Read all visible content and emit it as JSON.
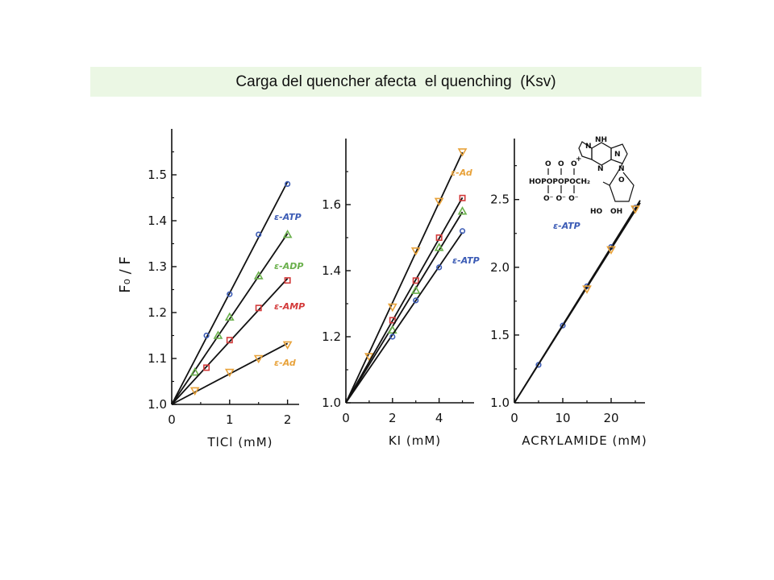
{
  "slide": {
    "title": "Carga del quencher afecta  el quenching  (Ksv)"
  },
  "colors": {
    "eATP": "#3b5bb5",
    "eADP": "#6ab04c",
    "eAMP": "#d33a3a",
    "eAd": "#e8a23a",
    "axis": "#111111"
  },
  "chart_data": [
    {
      "type": "scatter",
      "xlabel": "TlCl (mM)",
      "ylabel": "F₀ / F",
      "xlim": [
        0,
        2.2
      ],
      "ylim": [
        1.0,
        1.6
      ],
      "xticks": [
        0,
        1,
        2
      ],
      "xtick_labels": [
        "0",
        "1",
        "2"
      ],
      "yticks": [
        1.0,
        1.1,
        1.2,
        1.3,
        1.4,
        1.5
      ],
      "ytick_labels": [
        "1.0",
        "1.1",
        "1.2",
        "1.3",
        "1.4",
        "1.5"
      ],
      "series": [
        {
          "name": "ε-ATP",
          "marker": "circle",
          "x": [
            0.6,
            1.0,
            1.5,
            2.0
          ],
          "y": [
            1.15,
            1.24,
            1.37,
            1.48
          ]
        },
        {
          "name": "ε-ADP",
          "marker": "triangle-up",
          "x": [
            0.4,
            0.8,
            1.0,
            1.5,
            2.0
          ],
          "y": [
            1.07,
            1.15,
            1.19,
            1.28,
            1.37
          ]
        },
        {
          "name": "ε-AMP",
          "marker": "square",
          "x": [
            0.6,
            1.0,
            1.5,
            2.0
          ],
          "y": [
            1.08,
            1.14,
            1.21,
            1.27
          ]
        },
        {
          "name": "ε-Ad",
          "marker": "triangle-down",
          "x": [
            0.4,
            1.0,
            1.5,
            2.0
          ],
          "y": [
            1.03,
            1.07,
            1.1,
            1.13
          ]
        }
      ]
    },
    {
      "type": "scatter",
      "xlabel": "KI (mM)",
      "ylabel": "",
      "xlim": [
        0,
        5.5
      ],
      "ylim": [
        1.0,
        1.8
      ],
      "xticks": [
        0,
        2,
        4
      ],
      "xtick_labels": [
        "0",
        "2",
        "4"
      ],
      "yticks": [
        1.0,
        1.2,
        1.4,
        1.6
      ],
      "ytick_labels": [
        "1.0",
        "1.2",
        "1.4",
        "1.6"
      ],
      "series": [
        {
          "name": "ε-Ad",
          "marker": "triangle-down",
          "x": [
            1,
            2,
            3,
            4,
            5
          ],
          "y": [
            1.14,
            1.29,
            1.46,
            1.61,
            1.76
          ]
        },
        {
          "name": "",
          "marker": "square",
          "x": [
            2,
            3,
            4,
            5
          ],
          "y": [
            1.25,
            1.37,
            1.5,
            1.62
          ]
        },
        {
          "name": "",
          "marker": "triangle-up",
          "x": [
            2,
            3,
            4,
            5
          ],
          "y": [
            1.22,
            1.34,
            1.47,
            1.58
          ]
        },
        {
          "name": "ε-ATP",
          "marker": "circle",
          "x": [
            2,
            3,
            4,
            5
          ],
          "y": [
            1.2,
            1.31,
            1.41,
            1.52
          ]
        }
      ]
    },
    {
      "type": "scatter",
      "xlabel": "ACRYLAMIDE (mM)",
      "ylabel": "",
      "xlim": [
        0,
        27
      ],
      "ylim": [
        1.0,
        2.95
      ],
      "xticks": [
        0,
        10,
        20
      ],
      "xtick_labels": [
        "0",
        "10",
        "20"
      ],
      "yticks": [
        1.0,
        1.5,
        2.0,
        2.5
      ],
      "ytick_labels": [
        "1.0",
        "1.5",
        "2.0",
        "2.5"
      ],
      "inset_label": "ε-ATP",
      "structure_labels": [
        "NH",
        "N",
        "N",
        "N",
        "N",
        "+",
        "O",
        "O",
        "O",
        "HOPOPOPOCH₂",
        "O⁻ O⁻ O⁻",
        "HO",
        "OH",
        "O"
      ],
      "series": [
        {
          "name": "",
          "marker": "circle",
          "x": [
            5,
            10,
            15,
            20,
            25
          ],
          "y": [
            1.28,
            1.57,
            1.86,
            2.15,
            2.44
          ]
        },
        {
          "name": "",
          "marker": "triangle-down",
          "x": [
            15,
            20,
            25
          ],
          "y": [
            1.84,
            2.13,
            2.43
          ]
        }
      ]
    }
  ]
}
